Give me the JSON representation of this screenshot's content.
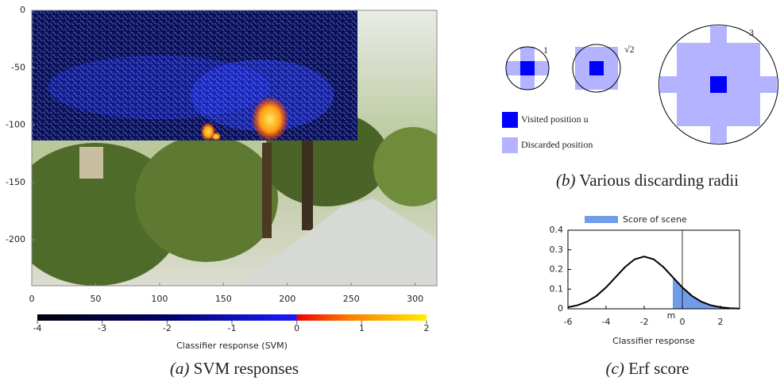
{
  "chart_data": [
    {
      "type": "heatmap",
      "xlim": [
        0,
        317
      ],
      "ylim": [
        -240,
        0
      ],
      "xticks": [
        0,
        50,
        100,
        150,
        200,
        250,
        300
      ],
      "yticks": [
        0,
        -50,
        -100,
        -150,
        -200
      ],
      "colorbar": {
        "clim": [
          -4,
          2
        ],
        "ticks": [
          -4,
          -3,
          -2,
          -1,
          0,
          1,
          2
        ],
        "label": "Classifier response (SVM)"
      },
      "caption_label": "(a)",
      "caption": "SVM responses"
    },
    {
      "type": "line",
      "xlabel": "Classifier response",
      "xlim": [
        -6,
        3
      ],
      "ylim": [
        0,
        0.4
      ],
      "xticks": [
        -6,
        -4,
        -2,
        0,
        2
      ],
      "yticks": [
        0,
        0.1,
        0.2,
        0.3,
        0.4
      ],
      "x": [
        -6,
        -5.5,
        -5,
        -4.5,
        -4,
        -3.5,
        -3,
        -2.5,
        -2,
        -1.5,
        -1,
        -0.5,
        0,
        0.5,
        1,
        1.5,
        2,
        2.5,
        3
      ],
      "series": [
        {
          "color": "#000000",
          "values": [
            0.008,
            0.018,
            0.036,
            0.066,
            0.109,
            0.161,
            0.213,
            0.252,
            0.266,
            0.252,
            0.213,
            0.161,
            0.109,
            0.066,
            0.036,
            0.018,
            0.008,
            0.003,
            0.001
          ]
        },
        {
          "name": "Score of scene",
          "color": "#6f9de8",
          "fill": true,
          "values": [
            null,
            null,
            null,
            null,
            null,
            null,
            null,
            null,
            null,
            null,
            null,
            0.161,
            0.109,
            0.066,
            0.036,
            0.018,
            0.008,
            0.003,
            0.001
          ]
        }
      ],
      "annotations": [
        {
          "text": "m",
          "x": -0.5
        }
      ],
      "vline": 0,
      "caption_label": "(c)",
      "caption": "Erf score"
    }
  ],
  "diagram": {
    "radii": [
      {
        "label": "1"
      },
      {
        "label": "√2"
      },
      {
        "label": "3"
      }
    ],
    "legend": [
      {
        "label": "Visited position u"
      },
      {
        "label": "Discarded position"
      }
    ],
    "caption_label": "(b)",
    "caption": "Various discarding radii"
  }
}
